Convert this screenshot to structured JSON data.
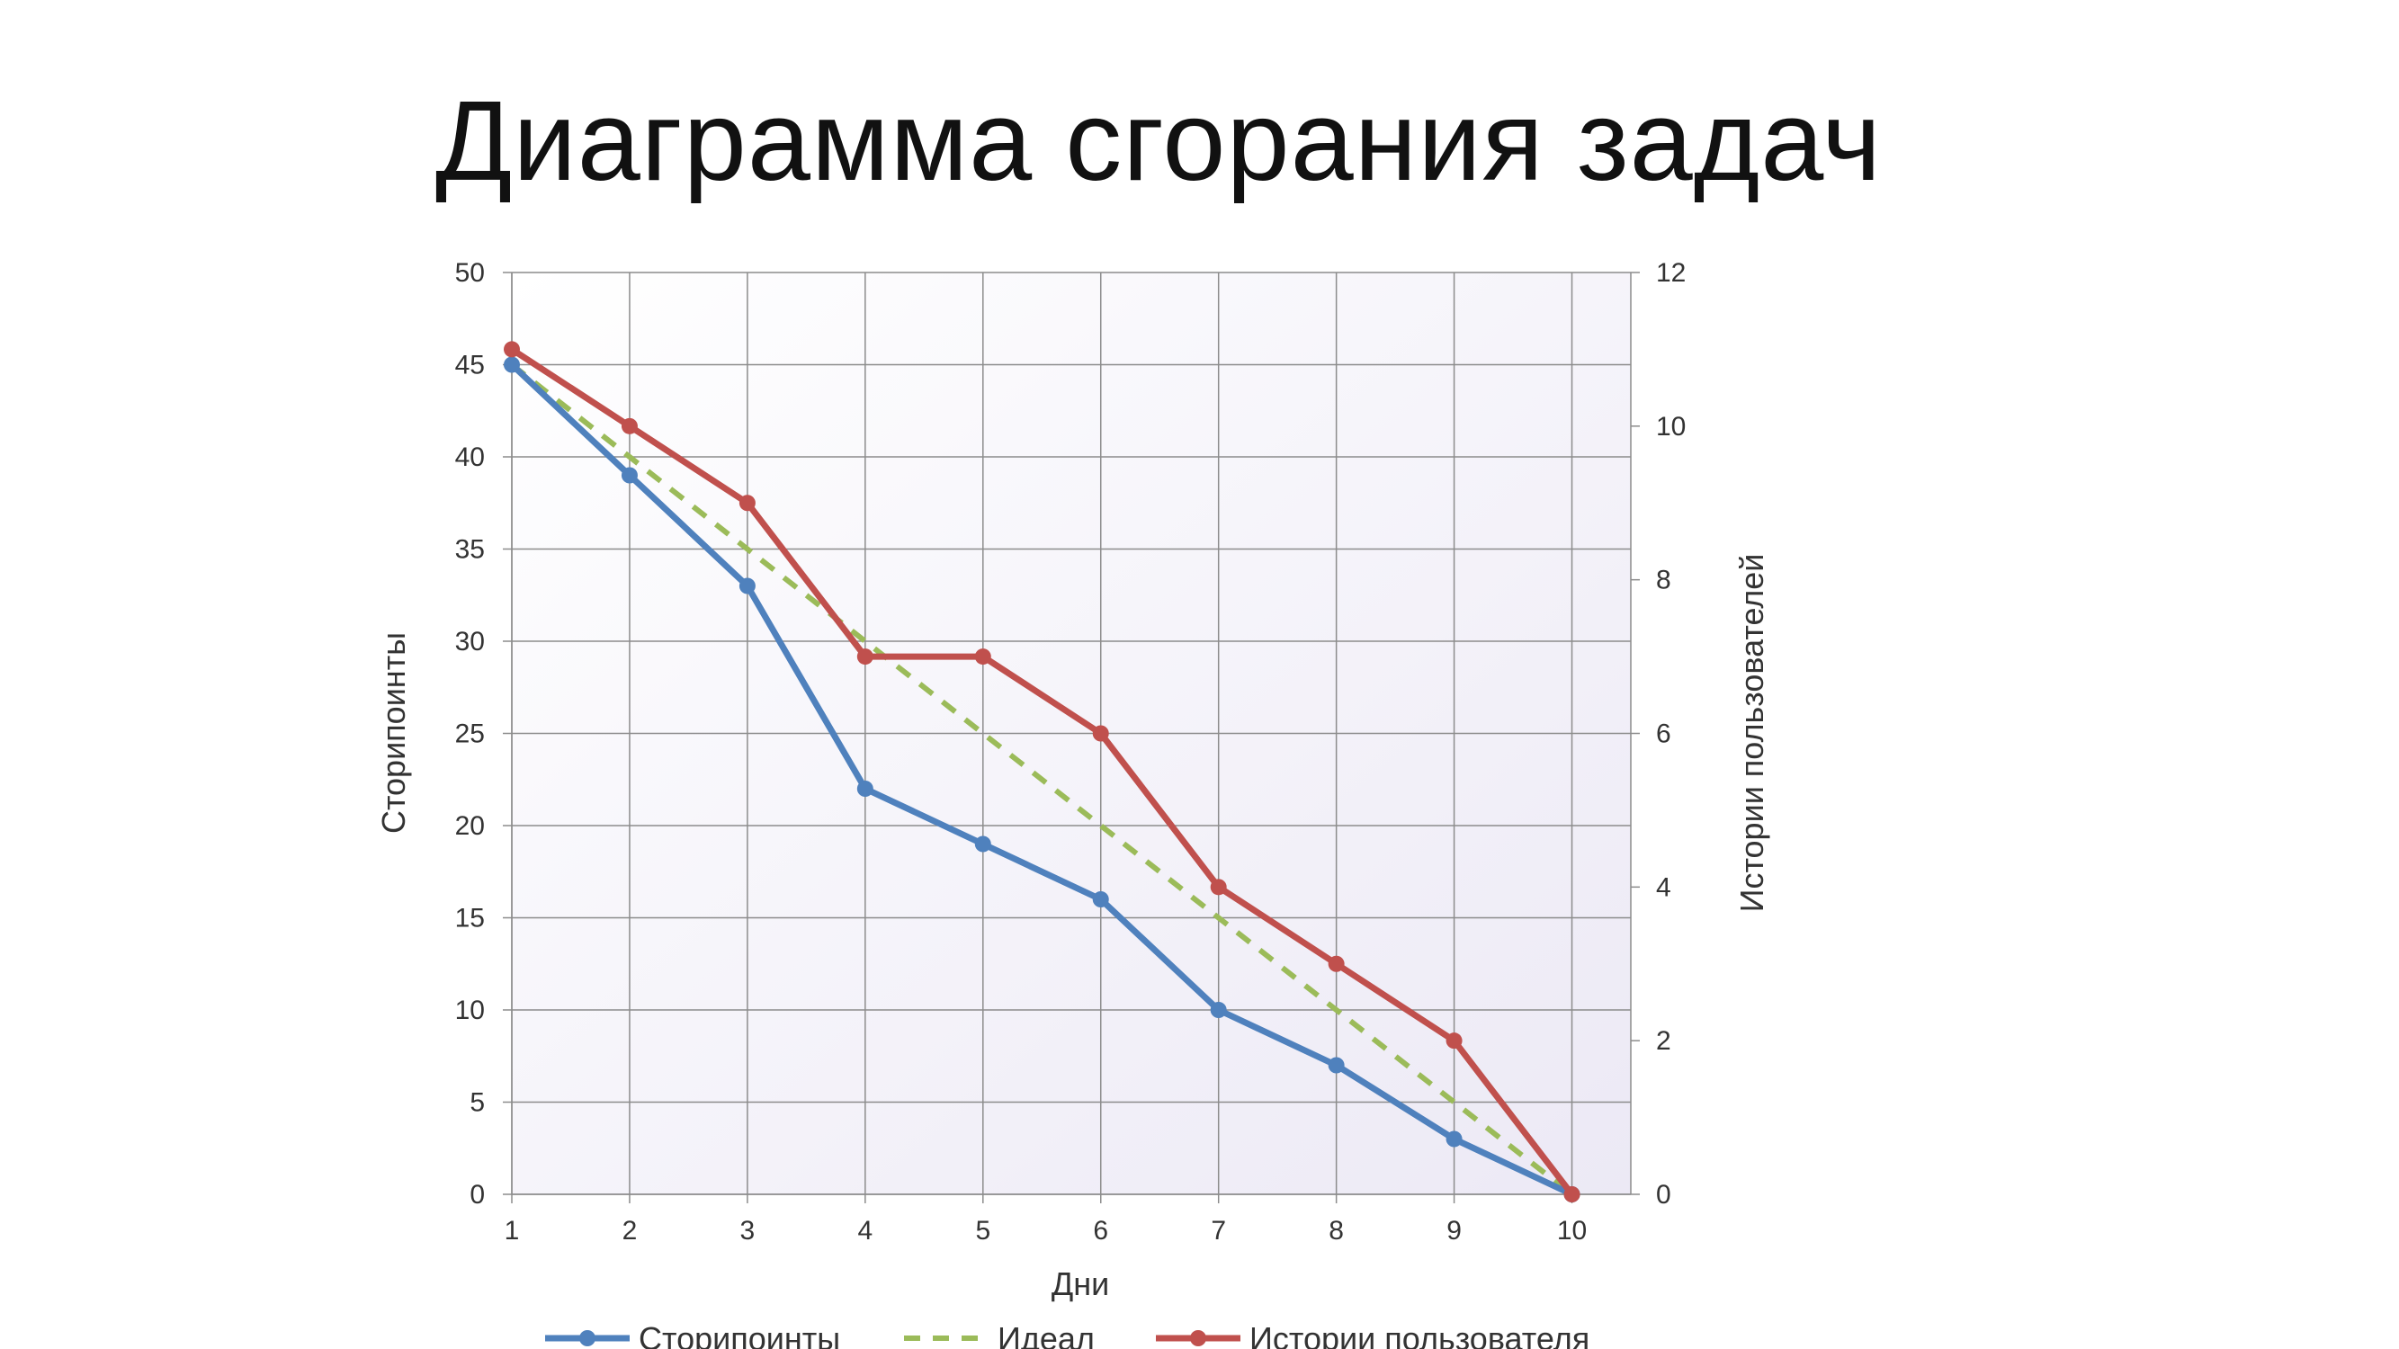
{
  "slide": {
    "title": "Диаграмма сгорания задач"
  },
  "chart_data": {
    "type": "line",
    "title": "",
    "x": [
      1,
      2,
      3,
      4,
      5,
      6,
      7,
      8,
      9,
      10
    ],
    "xlabel": "Дни",
    "ylabel": "Сторипоинты",
    "y2label": "Истории пользователя",
    "y2label_printed": "Истории пользователей",
    "xlim": [
      1,
      10
    ],
    "ylim": [
      0,
      50
    ],
    "y_ticks": [
      0,
      5,
      10,
      15,
      20,
      25,
      30,
      35,
      40,
      45,
      50
    ],
    "y2lim": [
      0,
      12
    ],
    "y2_ticks": [
      0,
      2,
      4,
      6,
      8,
      10,
      12
    ],
    "grid": true,
    "legend_position": "bottom",
    "series": [
      {
        "name": "Сторипоинты",
        "axis": "left",
        "values": [
          45,
          39,
          33,
          22,
          19,
          16,
          10,
          7,
          3,
          0
        ],
        "color": "#4f81bd",
        "style": "solid",
        "markers": true
      },
      {
        "name": "Идеал",
        "axis": "left",
        "values": [
          45,
          40,
          35,
          30,
          25,
          20,
          15,
          10,
          5,
          0
        ],
        "color": "#9bbb59",
        "style": "dashed",
        "markers": false
      },
      {
        "name": "Истории пользователя",
        "axis": "right",
        "values": [
          11,
          10,
          9,
          7,
          7,
          6,
          4,
          3,
          2,
          0
        ],
        "color": "#c0504d",
        "style": "solid",
        "markers": true
      }
    ]
  }
}
